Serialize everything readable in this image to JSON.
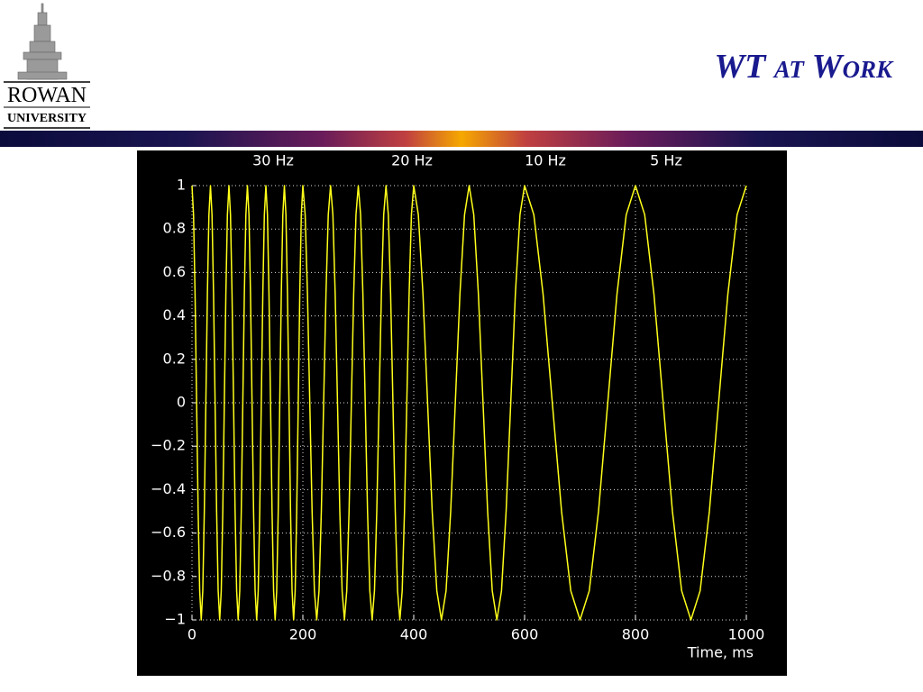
{
  "header": {
    "title": "WT at Work",
    "logo_name": "ROWAN",
    "logo_sub": "UNIVERSITY"
  },
  "chart_data": {
    "type": "line",
    "color": "#ffff1a",
    "grid": true,
    "annotations": [
      "30 Hz",
      "20 Hz",
      "10 Hz",
      "5 Hz"
    ],
    "xlabel": "Time, ms",
    "xlim": [
      0,
      1000
    ],
    "ylim": [
      -1,
      1
    ],
    "xticks": [
      0,
      200,
      400,
      600,
      800,
      1000
    ],
    "yticks": [
      {
        "value": -1,
        "label": "−1"
      },
      {
        "value": -0.8,
        "label": "−0.8"
      },
      {
        "value": -0.6,
        "label": "−0.6"
      },
      {
        "value": -0.4,
        "label": "−0.4"
      },
      {
        "value": -0.2,
        "label": "−0.2"
      },
      0,
      0.2,
      0.4,
      0.6,
      0.8,
      1
    ],
    "x": [
      0,
      2.78,
      5.56,
      8.33,
      11.11,
      13.89,
      16.67,
      19.44,
      22.22,
      25,
      27.78,
      30.56,
      33.33,
      36.11,
      38.89,
      41.67,
      44.44,
      47.22,
      50,
      52.78,
      55.56,
      58.33,
      61.11,
      63.89,
      66.67,
      69.44,
      72.22,
      75,
      77.78,
      80.56,
      83.33,
      86.11,
      88.89,
      91.67,
      94.44,
      97.22,
      100,
      102.78,
      105.56,
      108.33,
      111.11,
      113.89,
      116.67,
      119.44,
      122.22,
      125,
      127.78,
      130.56,
      133.33,
      136.11,
      138.89,
      141.67,
      144.44,
      147.22,
      150,
      152.78,
      155.56,
      158.33,
      161.11,
      163.89,
      166.67,
      169.44,
      172.22,
      175,
      177.78,
      180.56,
      183.33,
      186.11,
      188.89,
      191.67,
      194.44,
      197.22,
      200,
      204.17,
      208.33,
      212.5,
      216.67,
      220.83,
      225,
      229.17,
      233.33,
      237.5,
      241.67,
      245.83,
      250,
      254.17,
      258.33,
      262.5,
      266.67,
      270.83,
      275,
      279.17,
      283.33,
      287.5,
      291.67,
      295.83,
      300,
      304.17,
      308.33,
      312.5,
      316.67,
      320.83,
      325,
      329.17,
      333.33,
      337.5,
      341.67,
      345.83,
      350,
      354.17,
      358.33,
      362.5,
      366.67,
      370.83,
      375,
      379.17,
      383.33,
      387.5,
      391.67,
      395.83,
      400,
      408.33,
      416.67,
      425,
      433.33,
      441.67,
      450,
      458.33,
      466.67,
      475,
      483.33,
      491.67,
      500,
      508.33,
      516.67,
      525,
      533.33,
      541.67,
      550,
      558.33,
      566.67,
      575,
      583.33,
      591.67,
      600,
      616.67,
      633.33,
      650,
      666.67,
      683.33,
      700,
      716.67,
      733.33,
      750,
      766.67,
      783.33,
      800,
      816.67,
      833.33,
      850,
      866.67,
      883.33,
      900,
      916.67,
      933.33,
      950,
      966.67,
      983.33,
      1000
    ],
    "values": [
      1,
      0.866,
      0.5,
      0,
      -0.5,
      -0.866,
      -1,
      -0.866,
      -0.5,
      0,
      0.5,
      0.866,
      1,
      0.866,
      0.5,
      0,
      -0.5,
      -0.866,
      -1,
      -0.866,
      -0.5,
      0,
      0.5,
      0.866,
      1,
      0.866,
      0.5,
      0,
      -0.5,
      -0.866,
      -1,
      -0.866,
      -0.5,
      0,
      0.5,
      0.866,
      1,
      0.866,
      0.5,
      0,
      -0.5,
      -0.866,
      -1,
      -0.866,
      -0.5,
      0,
      0.5,
      0.866,
      1,
      0.866,
      0.5,
      0,
      -0.5,
      -0.866,
      -1,
      -0.866,
      -0.5,
      0,
      0.5,
      0.866,
      1,
      0.866,
      0.5,
      0,
      -0.5,
      -0.866,
      -1,
      -0.866,
      -0.5,
      0,
      0.5,
      0.866,
      1,
      0.866,
      0.5,
      0,
      -0.5,
      -0.866,
      -1,
      -0.866,
      -0.5,
      0,
      0.5,
      0.866,
      1,
      0.866,
      0.5,
      0,
      -0.5,
      -0.866,
      -1,
      -0.866,
      -0.5,
      0,
      0.5,
      0.866,
      1,
      0.866,
      0.5,
      0,
      -0.5,
      -0.866,
      -1,
      -0.866,
      -0.5,
      0,
      0.5,
      0.866,
      1,
      0.866,
      0.5,
      0,
      -0.5,
      -0.866,
      -1,
      -0.866,
      -0.5,
      0,
      0.5,
      0.866,
      1,
      0.866,
      0.5,
      0,
      -0.5,
      -0.866,
      -1,
      -0.866,
      -0.5,
      0,
      0.5,
      0.866,
      1,
      0.866,
      0.5,
      0,
      -0.5,
      -0.866,
      -1,
      -0.866,
      -0.5,
      0,
      0.5,
      0.866,
      1,
      0.866,
      0.5,
      0,
      -0.5,
      -0.866,
      -1,
      -0.866,
      -0.5,
      0,
      0.5,
      0.866,
      1,
      0.866,
      0.5,
      0,
      -0.5,
      -0.866,
      -1,
      -0.866,
      -0.5,
      0,
      0.5,
      0.866,
      1
    ]
  }
}
